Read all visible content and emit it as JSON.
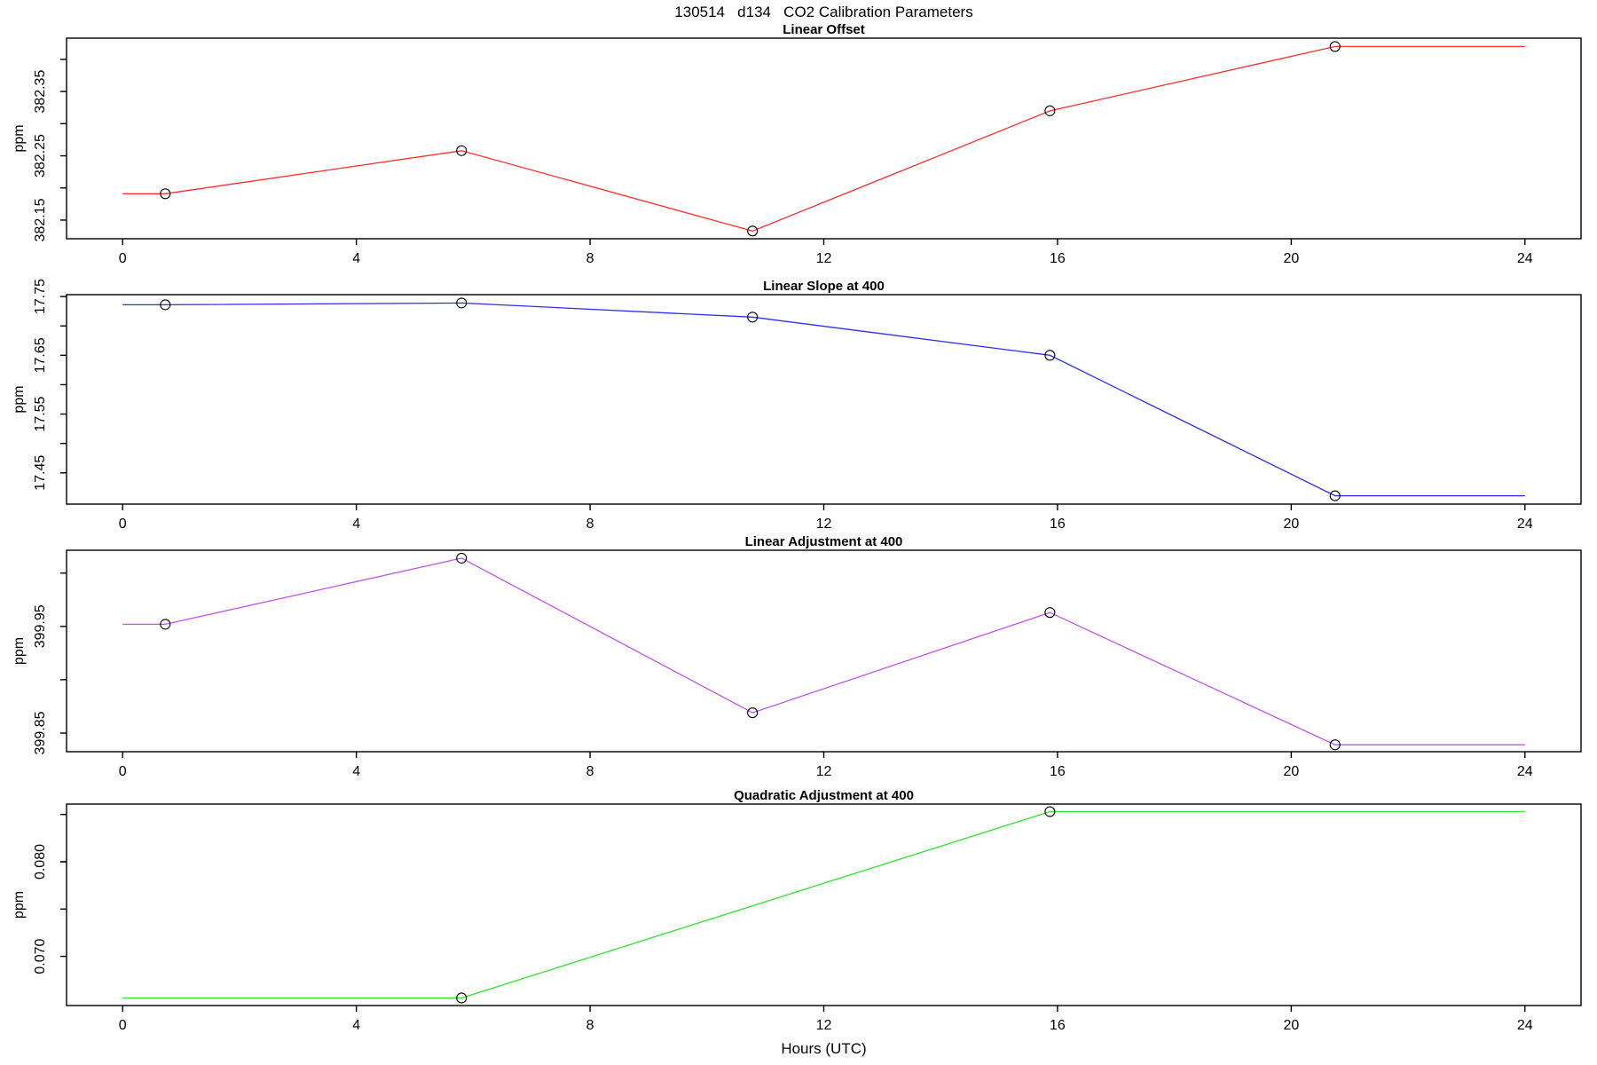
{
  "page": {
    "main_title": "130514   d134   CO2 Calibration Parameters",
    "x_axis_label": "Hours (UTC)",
    "background_color": "#ffffff",
    "axis_color": "#000000"
  },
  "chart_data": {
    "type": "line",
    "title": "130514   d134   CO2 Calibration Parameters",
    "xlabel": "Hours (UTC)",
    "xlim": [
      -0.96,
      24.96
    ],
    "xticks": [
      0,
      4,
      8,
      12,
      16,
      20,
      24
    ],
    "grid": "off",
    "legend": "none",
    "marker": "open-circle",
    "panels": [
      {
        "title": "Linear Offset",
        "ylabel": "ppm",
        "color": "#ff2d2d",
        "ylim": [
          382.121,
          382.433
        ],
        "yticks": [
          {
            "v": 382.15,
            "label": "382.15"
          },
          {
            "v": 382.2,
            "label": ""
          },
          {
            "v": 382.25,
            "label": "382.25"
          },
          {
            "v": 382.3,
            "label": ""
          },
          {
            "v": 382.35,
            "label": "382.35"
          },
          {
            "v": 382.4,
            "label": ""
          }
        ],
        "points_x": [
          0.73,
          5.8,
          10.78,
          15.87,
          20.75
        ],
        "points_y": [
          382.191,
          382.258,
          382.133,
          382.32,
          382.42
        ],
        "flat_start_x": 0,
        "flat_end_x": 24
      },
      {
        "title": "Linear Slope at 400",
        "ylabel": "ppm",
        "color": "#2d2df0",
        "ylim": [
          17.3968,
          17.7532
        ],
        "yticks": [
          {
            "v": 17.45,
            "label": "17.45"
          },
          {
            "v": 17.5,
            "label": ""
          },
          {
            "v": 17.55,
            "label": "17.55"
          },
          {
            "v": 17.6,
            "label": ""
          },
          {
            "v": 17.65,
            "label": "17.65"
          },
          {
            "v": 17.7,
            "label": ""
          },
          {
            "v": 17.75,
            "label": "17.75"
          }
        ],
        "points_x": [
          0.73,
          5.8,
          10.78,
          15.87,
          20.75
        ],
        "points_y": [
          17.736,
          17.739,
          17.715,
          17.65,
          17.411
        ],
        "flat_start_x": 0,
        "flat_end_x": 24
      },
      {
        "title": "Linear Adjustment at 400",
        "ylabel": "ppm",
        "color": "#bf55f0",
        "ylim": [
          399.8325,
          400.0214
        ],
        "yticks": [
          {
            "v": 399.85,
            "label": "399.85"
          },
          {
            "v": 399.9,
            "label": ""
          },
          {
            "v": 399.95,
            "label": "399.95"
          },
          {
            "v": 400.0,
            "label": ""
          }
        ],
        "points_x": [
          0.73,
          5.8,
          10.78,
          15.87,
          20.75
        ],
        "points_y": [
          399.952,
          400.014,
          399.869,
          399.963,
          399.839
        ],
        "flat_start_x": 0,
        "flat_end_x": 24
      },
      {
        "title": "Quadratic Adjustment at 400",
        "ylabel": "ppm",
        "color": "#2fe32f",
        "ylim": [
          0.0648,
          0.0861
        ],
        "yticks": [
          {
            "v": 0.07,
            "label": "0.070"
          },
          {
            "v": 0.075,
            "label": ""
          },
          {
            "v": 0.08,
            "label": ""
          },
          {
            "v": 0.08,
            "label": "0.080"
          },
          {
            "v": 0.085,
            "label": ""
          }
        ],
        "points_x": [
          5.8,
          15.87
        ],
        "points_y": [
          0.0656,
          0.0853
        ],
        "flat_start_x": 0,
        "flat_end_x": 24
      }
    ]
  }
}
